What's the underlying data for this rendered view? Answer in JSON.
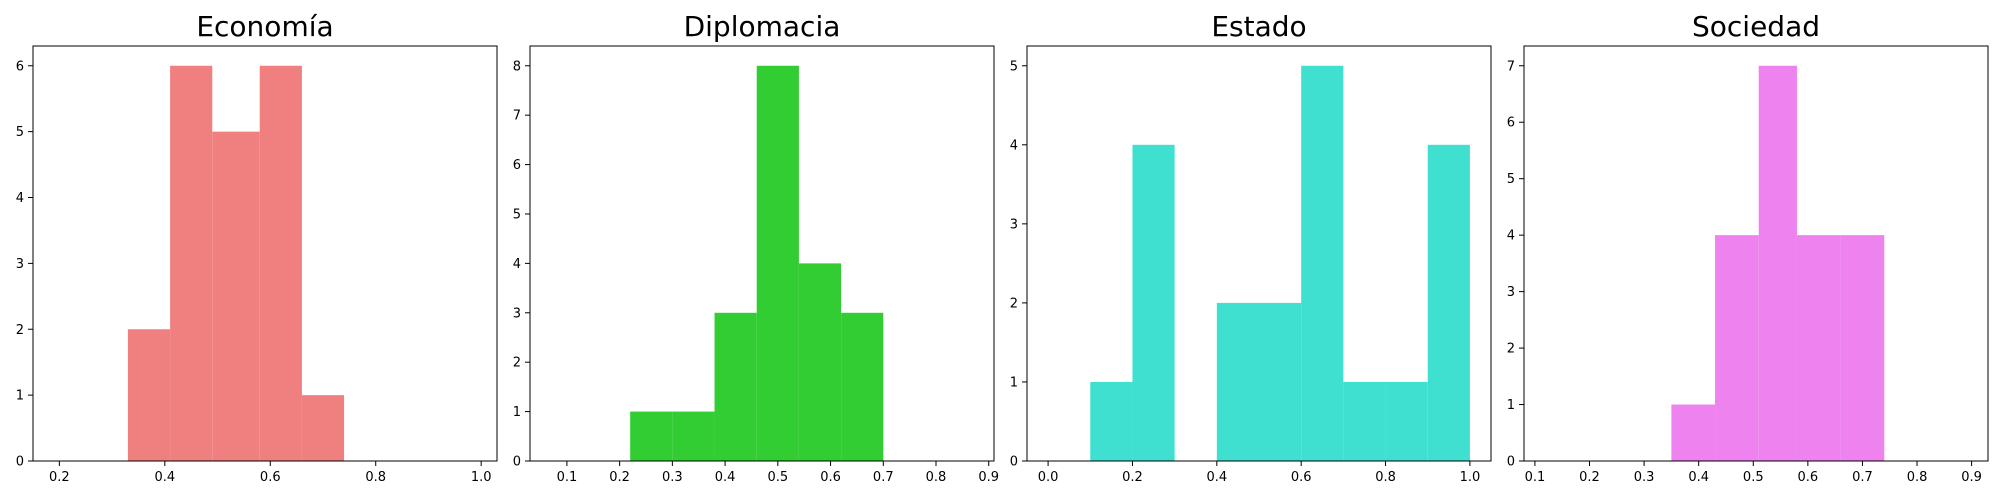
{
  "chart_data": [
    {
      "type": "bar",
      "title": "Economía",
      "color": "#f08080",
      "xlim": [
        0.15,
        1.03
      ],
      "ylim": [
        0,
        6.3
      ],
      "xticks": [
        0.2,
        0.4,
        0.6,
        0.8,
        1.0
      ],
      "xtick_labels": [
        "0.2",
        "0.4",
        "0.6",
        "0.8",
        "1.0"
      ],
      "yticks": [
        0,
        1,
        2,
        3,
        4,
        5,
        6
      ],
      "bins": [
        {
          "x0": 0.33,
          "x1": 0.41,
          "value": 2
        },
        {
          "x0": 0.41,
          "x1": 0.49,
          "value": 6
        },
        {
          "x0": 0.49,
          "x1": 0.58,
          "value": 5
        },
        {
          "x0": 0.58,
          "x1": 0.66,
          "value": 6
        },
        {
          "x0": 0.66,
          "x1": 0.74,
          "value": 1
        }
      ]
    },
    {
      "type": "bar",
      "title": "Diplomacia",
      "color": "#32cd32",
      "xlim": [
        0.03,
        0.91
      ],
      "ylim": [
        0,
        8.4
      ],
      "xticks": [
        0.1,
        0.2,
        0.3,
        0.4,
        0.5,
        0.6,
        0.7,
        0.8,
        0.9
      ],
      "xtick_labels": [
        "0.1",
        "0.2",
        "0.3",
        "0.4",
        "0.5",
        "0.6",
        "0.7",
        "0.8",
        "0.9"
      ],
      "yticks": [
        0,
        1,
        2,
        3,
        4,
        5,
        6,
        7,
        8
      ],
      "bins": [
        {
          "x0": 0.22,
          "x1": 0.3,
          "value": 1
        },
        {
          "x0": 0.3,
          "x1": 0.38,
          "value": 1
        },
        {
          "x0": 0.38,
          "x1": 0.46,
          "value": 3
        },
        {
          "x0": 0.46,
          "x1": 0.54,
          "value": 8
        },
        {
          "x0": 0.54,
          "x1": 0.62,
          "value": 4
        },
        {
          "x0": 0.62,
          "x1": 0.7,
          "value": 3
        }
      ]
    },
    {
      "type": "bar",
      "title": "Estado",
      "color": "#40e0d0",
      "xlim": [
        -0.05,
        1.05
      ],
      "ylim": [
        0,
        5.25
      ],
      "xticks": [
        0.0,
        0.2,
        0.4,
        0.6,
        0.8,
        1.0
      ],
      "xtick_labels": [
        "0.0",
        "0.2",
        "0.4",
        "0.6",
        "0.8",
        "1.0"
      ],
      "yticks": [
        0,
        1,
        2,
        3,
        4,
        5
      ],
      "bins": [
        {
          "x0": 0.1,
          "x1": 0.2,
          "value": 1
        },
        {
          "x0": 0.2,
          "x1": 0.3,
          "value": 4
        },
        {
          "x0": 0.3,
          "x1": 0.4,
          "value": 0
        },
        {
          "x0": 0.4,
          "x1": 0.5,
          "value": 2
        },
        {
          "x0": 0.5,
          "x1": 0.6,
          "value": 2
        },
        {
          "x0": 0.6,
          "x1": 0.7,
          "value": 5
        },
        {
          "x0": 0.7,
          "x1": 0.8,
          "value": 1
        },
        {
          "x0": 0.8,
          "x1": 0.9,
          "value": 1
        },
        {
          "x0": 0.9,
          "x1": 1.0,
          "value": 4
        }
      ]
    },
    {
      "type": "bar",
      "title": "Sociedad",
      "color": "#ee82ee",
      "xlim": [
        0.08,
        0.93
      ],
      "ylim": [
        0,
        7.35
      ],
      "xticks": [
        0.1,
        0.2,
        0.3,
        0.4,
        0.5,
        0.6,
        0.7,
        0.8,
        0.9
      ],
      "xtick_labels": [
        "0.1",
        "0.2",
        "0.3",
        "0.4",
        "0.5",
        "0.6",
        "0.7",
        "0.8",
        "0.9"
      ],
      "yticks": [
        0,
        1,
        2,
        3,
        4,
        5,
        6,
        7
      ],
      "bins": [
        {
          "x0": 0.35,
          "x1": 0.43,
          "value": 1
        },
        {
          "x0": 0.43,
          "x1": 0.51,
          "value": 4
        },
        {
          "x0": 0.51,
          "x1": 0.58,
          "value": 7
        },
        {
          "x0": 0.58,
          "x1": 0.66,
          "value": 4
        },
        {
          "x0": 0.66,
          "x1": 0.74,
          "value": 4
        }
      ]
    }
  ]
}
